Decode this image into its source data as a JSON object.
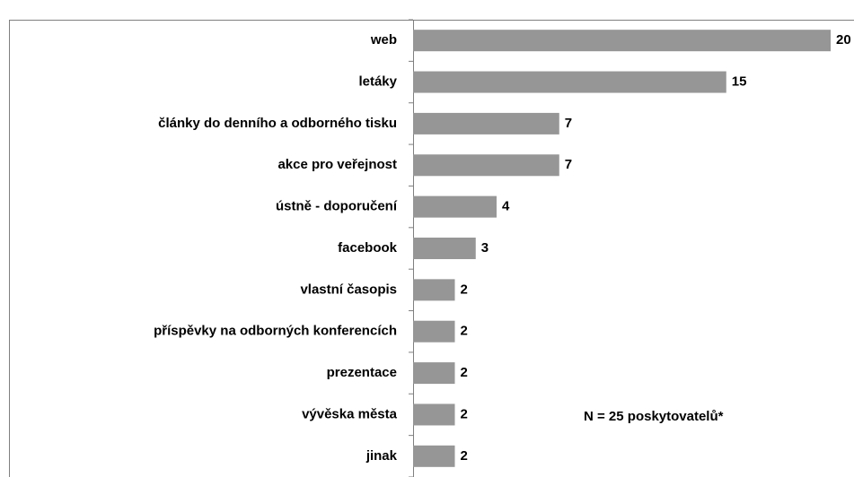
{
  "chart_data": {
    "type": "barh",
    "categories": [
      "web",
      "letáky",
      "články do denního a odborného tisku",
      "akce pro veřejnost",
      "ústně - doporučení",
      "facebook",
      "vlastní časopis",
      "příspěvky na odborných konferencích",
      "prezentace",
      "vývěska města",
      "jinak"
    ],
    "values": [
      20,
      15,
      7,
      7,
      4,
      3,
      2,
      2,
      2,
      2,
      2
    ],
    "color": "#969696",
    "xlim": [
      0,
      20
    ],
    "annotation": "N = 25 poskytovatelů*"
  }
}
